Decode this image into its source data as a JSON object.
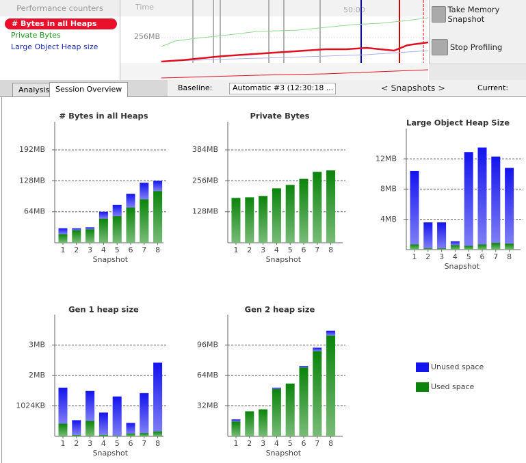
{
  "counters": {
    "header": "Performance counters",
    "items": [
      "# Bytes in all Heaps",
      "Private Bytes",
      "Large Object Heap size"
    ]
  },
  "timeline": {
    "time_label": "Time",
    "y_label": "256MB",
    "x_label": "50:00"
  },
  "buttons": [
    "Take Memory Snapshot",
    "Stop Profiling"
  ],
  "tabs": [
    "Analysis",
    "Session Overview"
  ],
  "toolbar": {
    "baseline_label": "Baseline:",
    "baseline_value": "Automatic #3 (12:30:18 ...",
    "snapshots": "< Snapshots >",
    "current_label": "Current:"
  },
  "legend": [
    {
      "name": "Unused space",
      "color": "#1414ee"
    },
    {
      "name": "Used space",
      "color": "#0b840b"
    }
  ],
  "chart_data": [
    {
      "type": "bar",
      "title": "# Bytes in all Heaps",
      "x_label": "Snapshot",
      "categories": [
        "1",
        "2",
        "3",
        "4",
        "5",
        "6",
        "7",
        "8"
      ],
      "series": [
        {
          "values": [
            12,
            4,
            4,
            14,
            23,
            28,
            34,
            21
          ]
        },
        {
          "values": [
            18,
            26,
            28,
            50,
            55,
            73,
            90,
            107
          ]
        }
      ],
      "ylim": [
        0,
        250
      ],
      "yticks": [
        {
          "value": 64,
          "label": "64MB"
        },
        {
          "value": 128,
          "label": "128MB"
        },
        {
          "value": 192,
          "label": "192MB"
        }
      ],
      "grid": true
    },
    {
      "type": "bar",
      "title": "Private Bytes",
      "x_label": "Snapshot",
      "categories": [
        "1",
        "2",
        "3",
        "4",
        "5",
        "6",
        "7",
        "8"
      ],
      "series": [
        {
          "values": [
            0,
            0,
            0,
            0,
            0,
            0,
            0,
            0
          ]
        },
        {
          "values": [
            185,
            188,
            193,
            225,
            239,
            264,
            293,
            299
          ]
        }
      ],
      "ylim": [
        0,
        500
      ],
      "yticks": [
        {
          "value": 128,
          "label": "128MB"
        },
        {
          "value": 256,
          "label": "256MB"
        },
        {
          "value": 384,
          "label": "384MB"
        }
      ],
      "grid": true
    },
    {
      "type": "bar",
      "title": "Large Object Heap Size",
      "x_label": "Snapshot",
      "categories": [
        "1",
        "2",
        "3",
        "4",
        "5",
        "6",
        "7",
        "8"
      ],
      "series": [
        {
          "values": [
            9.7,
            3.4,
            3.4,
            0.5,
            12.4,
            12.8,
            11.4,
            10.0
          ]
        },
        {
          "values": [
            0.7,
            0.2,
            0.2,
            0.6,
            0.5,
            0.7,
            0.9,
            0.8
          ]
        }
      ],
      "ylim": [
        0,
        16
      ],
      "yticks": [
        {
          "value": 4,
          "label": "4MB"
        },
        {
          "value": 8,
          "label": "8MB"
        },
        {
          "value": 12,
          "label": "12MB"
        }
      ],
      "grid": true
    },
    {
      "type": "bar",
      "title": "Gen 1 heap size",
      "x_label": "Snapshot",
      "categories": [
        "1",
        "2",
        "3",
        "4",
        "5",
        "6",
        "7",
        "8"
      ],
      "series": [
        {
          "values": [
            1.18,
            0.48,
            0.98,
            0.73,
            1.29,
            0.35,
            1.31,
            2.26
          ]
        },
        {
          "values": [
            0.42,
            0.05,
            0.51,
            0.05,
            0.02,
            0.09,
            0.11,
            0.16
          ]
        }
      ],
      "ylim": [
        0,
        4
      ],
      "yticks": [
        {
          "value": 1,
          "label": "1024KB"
        },
        {
          "value": 2,
          "label": "2MB"
        },
        {
          "value": 3,
          "label": "3MB"
        }
      ],
      "grid": true
    },
    {
      "type": "bar",
      "title": "Gen 2 heap size",
      "x_label": "Snapshot",
      "categories": [
        "1",
        "2",
        "3",
        "4",
        "5",
        "6",
        "7",
        "8"
      ],
      "series": [
        {
          "values": [
            2.2,
            0,
            0,
            1.4,
            0,
            1.5,
            3.6,
            5
          ]
        },
        {
          "values": [
            15.6,
            26.3,
            28.4,
            49.8,
            55.5,
            72.5,
            89.6,
            106
          ]
        }
      ],
      "ylim": [
        0,
        128
      ],
      "yticks": [
        {
          "value": 32,
          "label": "32MB"
        },
        {
          "value": 64,
          "label": "64MB"
        },
        {
          "value": 96,
          "label": "96MB"
        }
      ],
      "grid": true
    }
  ]
}
